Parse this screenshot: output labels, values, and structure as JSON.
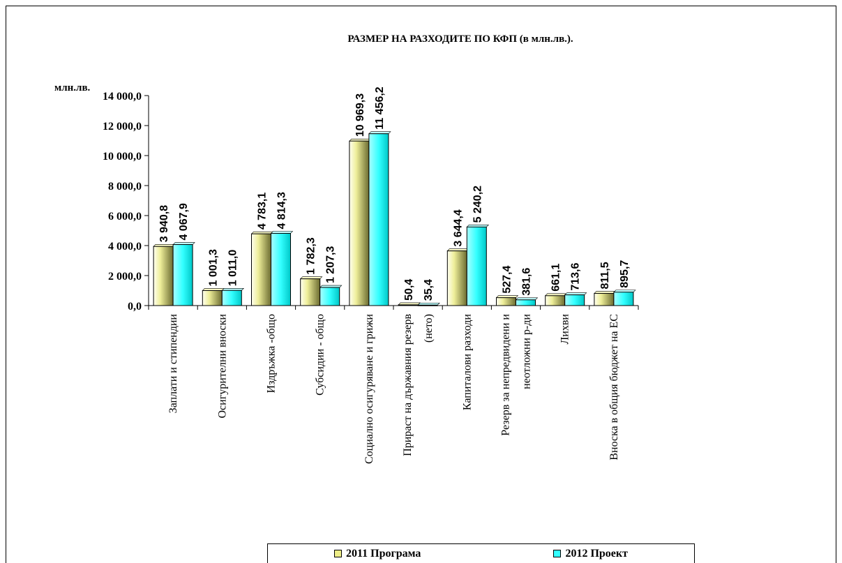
{
  "chart_data": {
    "type": "bar",
    "title": "РАЗМЕР НА РАЗХОДИТЕ ПО КФП (в млн.лв.).",
    "ylabel": "млн.лв.",
    "xlabel": "",
    "ylim": [
      0,
      14000
    ],
    "ytick_values": [
      0,
      2000,
      4000,
      6000,
      8000,
      10000,
      12000,
      14000
    ],
    "ytick_labels": [
      "0,0",
      "2 000,0",
      "4 000,0",
      "6 000,0",
      "8 000,0",
      "10 000,0",
      "12 000,0",
      "14 000,0"
    ],
    "categories": [
      [
        "Заплати и стипендии"
      ],
      [
        "Осигурителни вноски"
      ],
      [
        "Издръжка -общо"
      ],
      [
        "Субсидии - общо"
      ],
      [
        "Социално осигуряване и грижи"
      ],
      [
        "Прираст на държавния резерв",
        "(нето)"
      ],
      [
        "Капиталови разходи"
      ],
      [
        "Резерв за непредвидени и",
        "неотложни р-ди"
      ],
      [
        "Лихви"
      ],
      [
        "Вноска в общия бюджет на ЕС"
      ]
    ],
    "series": [
      {
        "name": "2011 Програма",
        "color": "#ffff99",
        "values": [
          3940.8,
          1001.3,
          4783.1,
          1782.3,
          10969.3,
          50.4,
          3644.4,
          527.4,
          661.1,
          811.5
        ],
        "labels": [
          "3 940,8",
          "1 001,3",
          "4 783,1",
          "1 782,3",
          "10 969,3",
          "50,4",
          "3 644,4",
          "527,4",
          "661,1",
          "811,5"
        ]
      },
      {
        "name": "2012 Проект",
        "color": "#33ffff",
        "values": [
          4067.9,
          1011.0,
          4814.3,
          1207.3,
          11456.2,
          35.4,
          5240.2,
          381.6,
          713.6,
          895.7
        ],
        "labels": [
          "4 067,9",
          "1 011,0",
          "4 814,3",
          "1 207,3",
          "11 456,2",
          "35,4",
          "5 240,2",
          "381,6",
          "713,6",
          "895,7"
        ]
      }
    ],
    "legend_position": "bottom",
    "grid": false
  }
}
